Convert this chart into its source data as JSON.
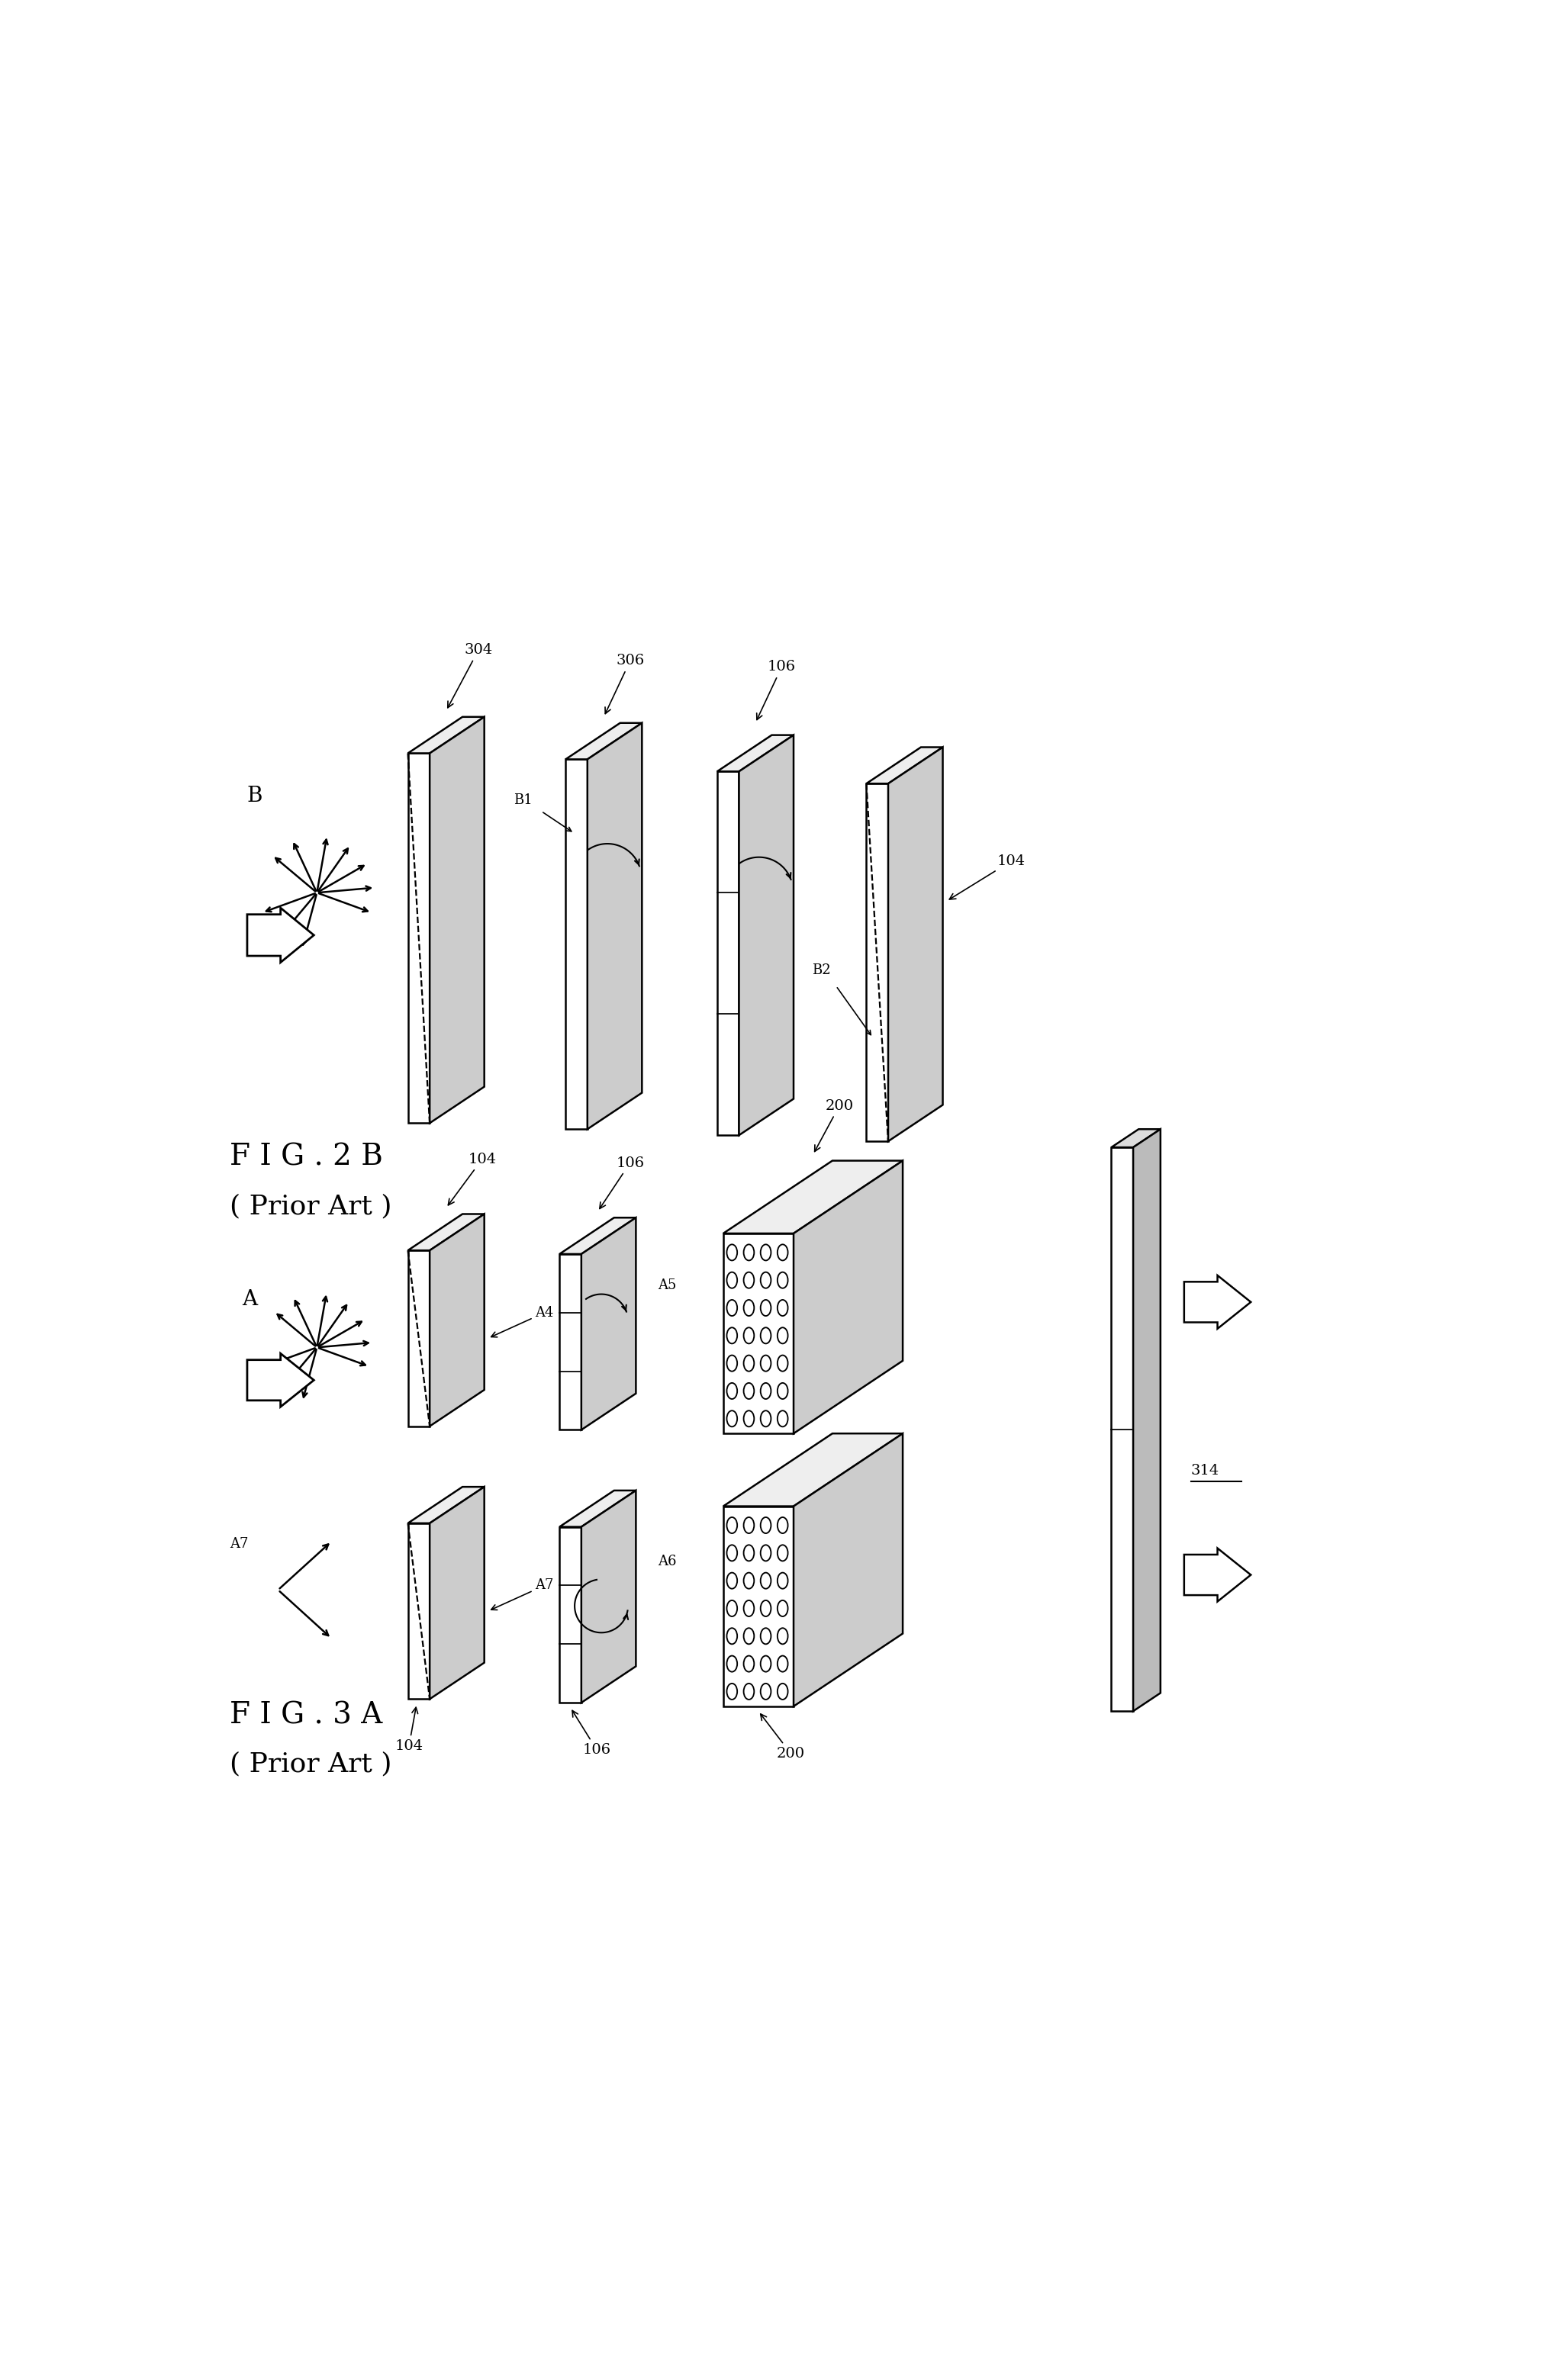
{
  "bg_color": "#ffffff",
  "line_color": "#000000",
  "fig_width": 20.51,
  "fig_height": 31.2,
  "fig2b_label": "F I G . 2 B",
  "fig2b_sub": "( Prior Art )",
  "fig3a_label": "F I G . 3 A",
  "fig3a_sub": "( Prior Art )"
}
